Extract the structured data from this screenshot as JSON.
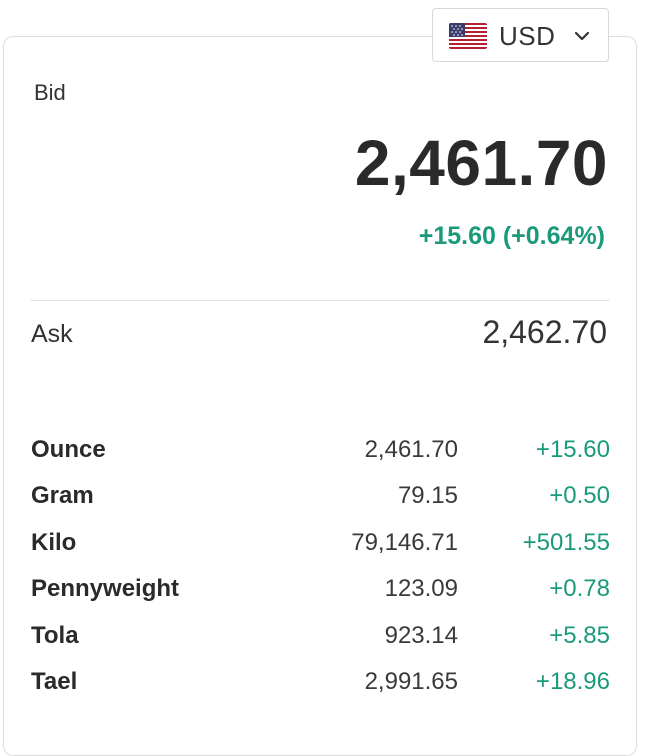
{
  "currency": {
    "code": "USD",
    "flag_icon": "us-flag-icon",
    "dropdown_icon": "chevron-down-icon"
  },
  "bid": {
    "label": "Bid",
    "price": "2,461.70",
    "change": "+15.60 (+0.64%)"
  },
  "ask": {
    "label": "Ask",
    "price": "2,462.70"
  },
  "units": [
    {
      "name": "Ounce",
      "price": "2,461.70",
      "change": "+15.60"
    },
    {
      "name": "Gram",
      "price": "79.15",
      "change": "+0.50"
    },
    {
      "name": "Kilo",
      "price": "79,146.71",
      "change": "+501.55"
    },
    {
      "name": "Pennyweight",
      "price": "123.09",
      "change": "+0.78"
    },
    {
      "name": "Tola",
      "price": "923.14",
      "change": "+5.85"
    },
    {
      "name": "Tael",
      "price": "2,991.65",
      "change": "+18.96"
    }
  ],
  "colors": {
    "positive": "#1a9a7a",
    "text": "#2a2a2a",
    "border": "#dedede"
  }
}
